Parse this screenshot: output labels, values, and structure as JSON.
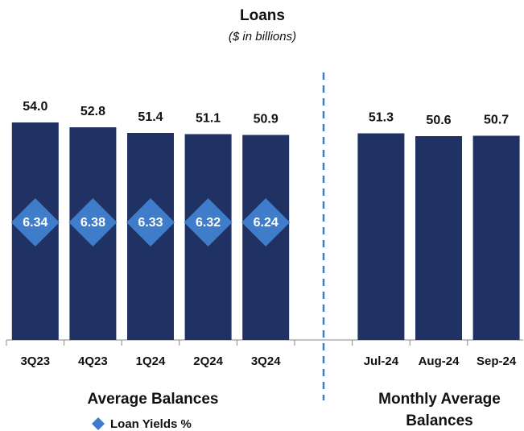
{
  "chart_data": {
    "type": "bar",
    "title": "Loans",
    "subtitle": "($ in billions)",
    "categories": [
      "3Q23",
      "4Q23",
      "1Q24",
      "2Q24",
      "3Q24",
      null,
      "Jul-24",
      "Aug-24",
      "Sep-24"
    ],
    "series": [
      {
        "color": "#1f3263",
        "values": [
          54.0,
          52.8,
          51.4,
          51.1,
          50.9,
          null,
          51.3,
          50.6,
          50.7
        ],
        "value_labels": [
          "54.0",
          "52.8",
          "51.4",
          "51.1",
          "50.9",
          null,
          "51.3",
          "50.6",
          "50.7"
        ]
      },
      {
        "name": "Loan Yields %",
        "color": "#3f7dca",
        "marker": "diamond",
        "values": [
          6.34,
          6.38,
          6.33,
          6.32,
          6.24,
          null,
          null,
          null,
          null
        ]
      }
    ],
    "group_labels": [
      "Average Balances",
      "Monthly Average Balances"
    ]
  }
}
